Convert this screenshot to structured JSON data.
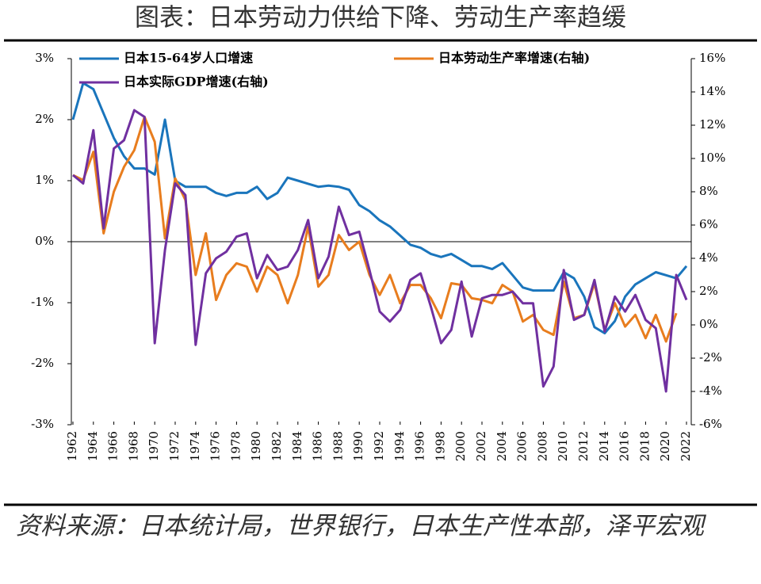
{
  "title": "图表：日本劳动力供给下降、劳动生产率趋缓",
  "source": "资料来源：日本统计局，世界银行，日本生产性本部，泽平宏观",
  "chart_data": {
    "type": "line",
    "x": [
      1962,
      1963,
      1964,
      1965,
      1966,
      1967,
      1968,
      1969,
      1970,
      1971,
      1972,
      1973,
      1974,
      1975,
      1976,
      1977,
      1978,
      1979,
      1980,
      1981,
      1982,
      1983,
      1984,
      1985,
      1986,
      1987,
      1988,
      1989,
      1990,
      1991,
      1992,
      1993,
      1994,
      1995,
      1996,
      1997,
      1998,
      1999,
      2000,
      2001,
      2002,
      2003,
      2004,
      2005,
      2006,
      2007,
      2008,
      2009,
      2010,
      2011,
      2012,
      2013,
      2014,
      2015,
      2016,
      2017,
      2018,
      2019,
      2020,
      2021,
      2022
    ],
    "xlim": [
      1962,
      2022
    ],
    "xticks": [
      1962,
      1964,
      1966,
      1968,
      1970,
      1972,
      1974,
      1976,
      1978,
      1980,
      1982,
      1984,
      1986,
      1988,
      1990,
      1992,
      1994,
      1996,
      1998,
      2000,
      2002,
      2004,
      2006,
      2008,
      2010,
      2012,
      2014,
      2016,
      2018,
      2020,
      2022
    ],
    "ylim": [
      -3,
      3
    ],
    "yticks": [
      {
        "value": -3,
        "label": "-3%"
      },
      {
        "value": -2,
        "label": "-2%"
      },
      {
        "value": -1,
        "label": "-1%"
      },
      {
        "value": 0,
        "label": "0%"
      },
      {
        "value": 1,
        "label": "1%"
      },
      {
        "value": 2,
        "label": "2%"
      },
      {
        "value": 3,
        "label": "3%"
      }
    ],
    "y2lim": [
      -6,
      16
    ],
    "y2ticks": [
      {
        "value": -6,
        "label": "-6%"
      },
      {
        "value": -4,
        "label": "-4%"
      },
      {
        "value": -2,
        "label": "-2%"
      },
      {
        "value": 0,
        "label": "0%"
      },
      {
        "value": 2,
        "label": "2%"
      },
      {
        "value": 4,
        "label": "4%"
      },
      {
        "value": 6,
        "label": "6%"
      },
      {
        "value": 8,
        "label": "8%"
      },
      {
        "value": 10,
        "label": "10%"
      },
      {
        "value": 12,
        "label": "12%"
      },
      {
        "value": 14,
        "label": "14%"
      },
      {
        "value": 16,
        "label": "16%"
      }
    ],
    "series": [
      {
        "name": "日本15-64岁人口增速",
        "color": "#1a75bc",
        "values": [
          2.0,
          2.6,
          2.5,
          2.1,
          1.7,
          1.4,
          1.2,
          1.2,
          1.1,
          2.0,
          1.0,
          0.9,
          0.9,
          0.9,
          0.8,
          0.75,
          0.8,
          0.8,
          0.9,
          0.7,
          0.8,
          1.05,
          1.0,
          0.95,
          0.9,
          0.92,
          0.9,
          0.85,
          0.6,
          0.5,
          0.35,
          0.25,
          0.1,
          -0.05,
          -0.1,
          -0.2,
          -0.25,
          -0.2,
          -0.3,
          -0.4,
          -0.4,
          -0.45,
          -0.35,
          -0.55,
          -0.75,
          -0.8,
          -0.8,
          -0.8,
          -0.5,
          -0.6,
          -0.9,
          -1.4,
          -1.5,
          -1.3,
          -0.9,
          -0.7,
          -0.6,
          -0.5,
          -0.55,
          -0.6,
          -0.4
        ]
      },
      {
        "name": "日本劳动生产率增速(右轴)",
        "color": "#e87d1e",
        "axis": "y2",
        "values": [
          9.0,
          8.7,
          10.4,
          5.5,
          8.0,
          9.5,
          10.5,
          12.5,
          11.0,
          5.2,
          8.8,
          7.5,
          3.0,
          5.5,
          1.5,
          3.0,
          3.7,
          3.5,
          2.0,
          3.5,
          3.0,
          1.3,
          3.0,
          5.9,
          2.3,
          3.0,
          5.4,
          4.5,
          5.0,
          3.0,
          1.8,
          3.0,
          1.3,
          2.4,
          2.4,
          1.6,
          0.4,
          2.5,
          2.4,
          1.6,
          1.5,
          1.3,
          2.4,
          2.0,
          0.2,
          0.6,
          -0.3,
          -0.6,
          2.6,
          0.4,
          0.6,
          2.5,
          -0.3,
          1.3,
          -0.1,
          0.6,
          -0.8,
          0.6,
          -1.0,
          0.7,
          null
        ]
      },
      {
        "name": "日本实际GDP增速(右轴)",
        "color": "#7030a0",
        "axis": "y2",
        "values": [
          9.0,
          8.5,
          11.7,
          5.8,
          10.6,
          11.1,
          12.9,
          12.5,
          -1.1,
          4.5,
          8.5,
          7.8,
          -1.2,
          3.1,
          4.0,
          4.4,
          5.3,
          5.5,
          2.8,
          4.2,
          3.3,
          3.5,
          4.5,
          6.3,
          2.8,
          4.1,
          7.1,
          5.4,
          5.6,
          3.3,
          0.8,
          0.2,
          0.9,
          2.7,
          3.1,
          1.1,
          -1.1,
          -0.3,
          2.6,
          -0.7,
          1.6,
          1.8,
          1.8,
          2.0,
          1.3,
          1.3,
          -3.7,
          -2.5,
          3.3,
          0.3,
          0.6,
          2.7,
          -0.4,
          1.7,
          0.8,
          1.8,
          0.3,
          -0.2,
          -4.0,
          3.0,
          1.5
        ]
      }
    ]
  }
}
